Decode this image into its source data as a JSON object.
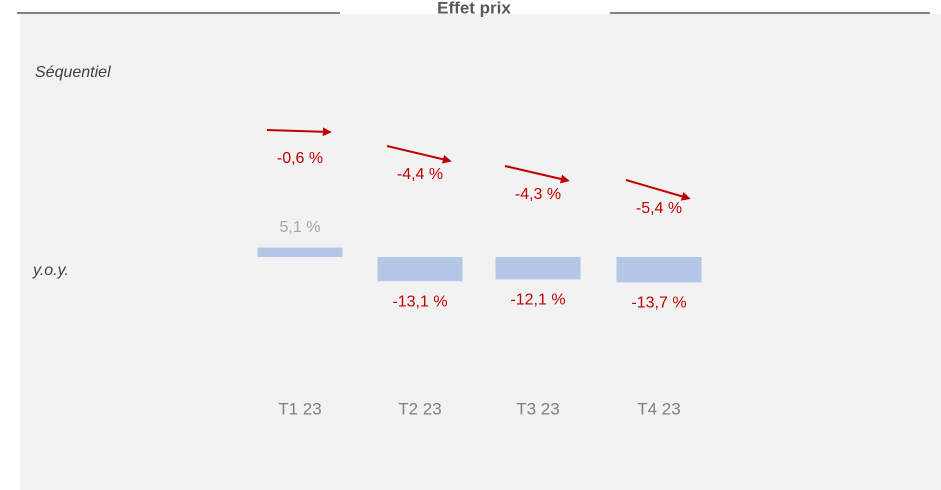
{
  "chart_data": {
    "type": "bar",
    "title": "Effet prix",
    "categories": [
      "T1 23",
      "T2 23",
      "T3 23",
      "T4 23"
    ],
    "series": [
      {
        "name": "Séquentiel",
        "color": "#c00000",
        "values": [
          -0.6,
          -4.4,
          -4.3,
          -5.4
        ],
        "value_labels": [
          "-0,6 %",
          "-4,4 %",
          "-4,3 %",
          "-5,4 %"
        ]
      },
      {
        "name": "y.o.y.",
        "color": "#b4c7e7",
        "values": [
          5.1,
          -13.1,
          -12.1,
          -13.7
        ],
        "value_labels": [
          "5,1 %",
          "-13,1 %",
          "-12,1 %",
          "-13,7 %"
        ]
      }
    ]
  }
}
